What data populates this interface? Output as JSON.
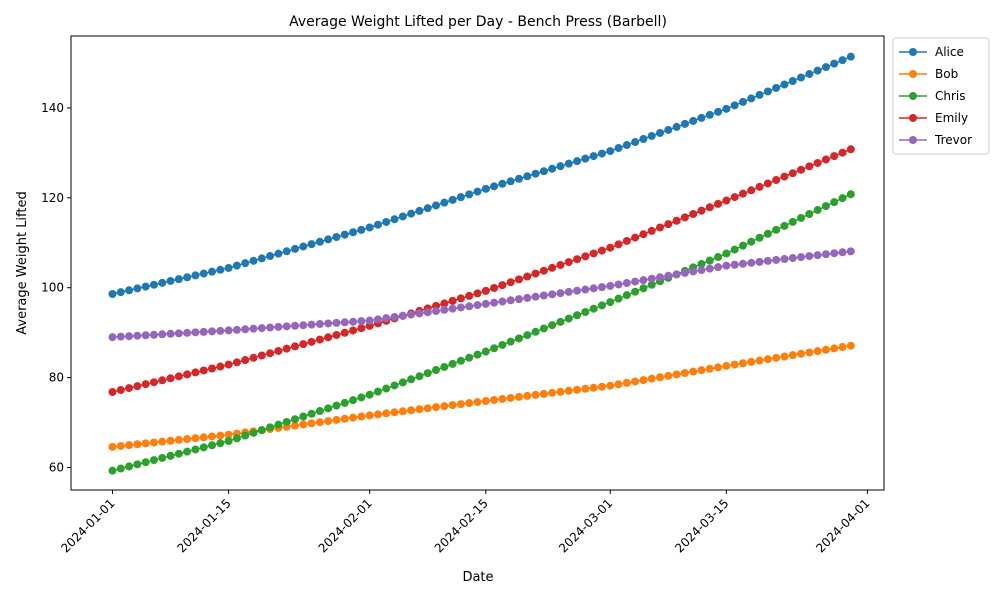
{
  "chart_data": {
    "type": "line",
    "title": "Average Weight Lifted per Day - Bench Press (Barbell)",
    "xlabel": "Date",
    "ylabel": "Average Weight Lifted",
    "x_start": "2024-01-01",
    "x_end": "2024-03-30",
    "xlim": [
      "2023-12-27",
      "2024-04-03"
    ],
    "ylim": [
      55,
      156
    ],
    "xticks": [
      "2024-01-01",
      "2024-01-15",
      "2024-02-01",
      "2024-02-15",
      "2024-03-01",
      "2024-03-15",
      "2024-04-01"
    ],
    "yticks": [
      60,
      80,
      100,
      120,
      140
    ],
    "grid": false,
    "legend_position": "outside top-right",
    "series": [
      {
        "name": "Alice",
        "color": "#1f77b4",
        "values_by_date": {
          "2024-01-01": 98.6,
          "2024-01-15": 104.4,
          "2024-02-01": 113.4,
          "2024-02-15": 122.0,
          "2024-03-01": 130.4,
          "2024-03-15": 139.8,
          "2024-03-30": 151.4
        }
      },
      {
        "name": "Bob",
        "color": "#ff7f0e",
        "values_by_date": {
          "2024-01-01": 64.6,
          "2024-01-15": 67.3,
          "2024-02-01": 71.6,
          "2024-02-15": 74.8,
          "2024-03-01": 78.2,
          "2024-03-15": 82.6,
          "2024-03-30": 87.1
        }
      },
      {
        "name": "Chris",
        "color": "#2ca02c",
        "values_by_date": {
          "2024-01-01": 59.3,
          "2024-01-15": 65.9,
          "2024-02-01": 76.2,
          "2024-02-15": 85.8,
          "2024-03-01": 96.8,
          "2024-03-15": 107.6,
          "2024-03-30": 120.8
        }
      },
      {
        "name": "Emily",
        "color": "#d62728",
        "values_by_date": {
          "2024-01-01": 76.8,
          "2024-01-15": 82.9,
          "2024-02-01": 91.5,
          "2024-02-15": 99.3,
          "2024-03-01": 108.9,
          "2024-03-15": 119.4,
          "2024-03-30": 130.8
        }
      },
      {
        "name": "Trevor",
        "color": "#9467bd",
        "values_by_date": {
          "2024-01-01": 89.0,
          "2024-01-15": 90.5,
          "2024-02-01": 92.7,
          "2024-02-15": 96.4,
          "2024-03-01": 100.4,
          "2024-03-15": 104.9,
          "2024-03-30": 108.1
        }
      }
    ]
  }
}
